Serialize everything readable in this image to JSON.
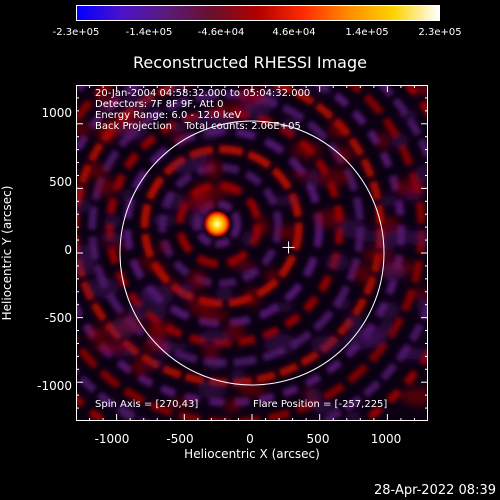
{
  "colorbar": {
    "gradient": [
      "#0000ff",
      "#4b12c8",
      "#5a1a78",
      "#6a0f2a",
      "#b20000",
      "#ff2a00",
      "#ff8c00",
      "#ffd200",
      "#ffffff"
    ],
    "labels": [
      "-2.3e+05",
      "-1.4e+05",
      "-4.6e+04",
      "4.6e+04",
      "1.4e+05",
      "2.3e+05"
    ]
  },
  "plot": {
    "title": "Reconstructed RHESSI Image",
    "info_lines": [
      "20-Jan-2004 04:58:32.000 to 05:04:32.000",
      "Detectors: 7F 8F 9F, Att 0",
      "Energy Range: 6.0 - 12.0 keV",
      "Back Projection    Total counts: 2.06E+05"
    ],
    "spin_axis": "Spin Axis = [270,43]",
    "flare_position": "Flare Position = [-257,225]",
    "xlabel": "Heliocentric X (arcsec)",
    "ylabel": "Heliocentric Y (arcsec)",
    "xticks": [
      "-1000",
      "-500",
      "0",
      "500",
      "1000"
    ],
    "yticks": [
      "1000",
      "500",
      "0",
      "-500",
      "-1000"
    ],
    "xlim": [
      -1300,
      1300
    ],
    "ylim": [
      -1300,
      1300
    ],
    "solar_radius_arcsec": 975,
    "source": {
      "x": -257,
      "y": 225
    },
    "spin_axis_xy": [
      270,
      43
    ]
  },
  "datestamp": "28-Apr-2022 08:39"
}
